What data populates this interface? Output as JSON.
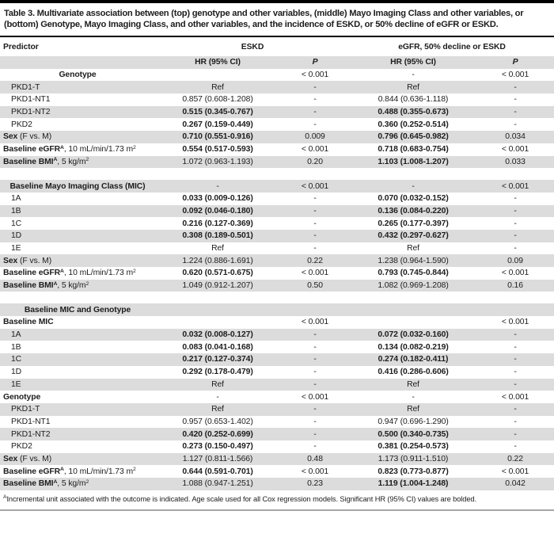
{
  "colors": {
    "stripe": "#dcdcdc",
    "rule_dark": "#000000",
    "rule_bottom": "#a6a6a6",
    "text": "#1d1d1d"
  },
  "table": {
    "title": "Table 3. Multivariate association between (top) genotype and other variables, (middle) Mayo Imaging Class and other variables, or (bottom) Genotype, Mayo Imaging Class, and other variables, and the incidence of ESKD, or 50% decline of eGFR or ESKD.",
    "headers": {
      "predictor": "Predictor",
      "group1": "ESKD",
      "group2": "eGFR, 50% decline or ESKD",
      "hr": "HR (95% CI)",
      "p": "P"
    },
    "footnote_sup": "A",
    "footnote": "Incremental unit associated with the outcome is indicated. Age scale used for all Cox regression models. Significant HR (95% CI) values are bolded.",
    "rows": [
      {
        "shade": false,
        "align": "center",
        "label": [
          {
            "t": "Genotype",
            "b": true
          }
        ],
        "cells": [
          "",
          "< 0.001",
          "-",
          "< 0.001"
        ]
      },
      {
        "shade": true,
        "indent": true,
        "label": [
          {
            "t": "PKD1-T"
          }
        ],
        "cells": [
          "Ref",
          "-",
          "Ref",
          "-"
        ]
      },
      {
        "shade": false,
        "indent": true,
        "label": [
          {
            "t": "PKD1-NT1"
          }
        ],
        "cells": [
          "0.857 (0.608-1.208)",
          "-",
          "0.844 (0.636-1.118)",
          "-"
        ]
      },
      {
        "shade": true,
        "indent": true,
        "label": [
          {
            "t": "PKD1-NT2"
          }
        ],
        "cells": [
          {
            "t": "0.515 (0.345-0.767)",
            "b": true
          },
          "-",
          {
            "t": "0.488 (0.355-0.673)",
            "b": true
          },
          "-"
        ]
      },
      {
        "shade": false,
        "indent": true,
        "label": [
          {
            "t": "PKD2"
          }
        ],
        "cells": [
          {
            "t": "0.267 (0.159-0.449)",
            "b": true
          },
          "-",
          {
            "t": "0.360 (0.252-0.514)",
            "b": true
          },
          "-"
        ]
      },
      {
        "shade": true,
        "label": [
          {
            "t": "Sex",
            "b": true
          },
          {
            "t": " (F vs. M)"
          }
        ],
        "cells": [
          {
            "t": "0.710 (0.551-0.916)",
            "b": true
          },
          "0.009",
          {
            "t": "0.796 (0.645-0.982)",
            "b": true
          },
          "0.034"
        ]
      },
      {
        "shade": false,
        "label": [
          {
            "t": "Baseline eGFR",
            "b": true
          },
          {
            "t": "A",
            "b": true,
            "s": true
          },
          {
            "t": ", 10 mL/min/1.73 m"
          },
          {
            "t": "2",
            "s": true
          }
        ],
        "cells": [
          {
            "t": "0.554 (0.517-0.593)",
            "b": true
          },
          "< 0.001",
          {
            "t": "0.718 (0.683-0.754)",
            "b": true
          },
          "< 0.001"
        ]
      },
      {
        "shade": true,
        "label": [
          {
            "t": "Baseline BMI",
            "b": true
          },
          {
            "t": "A",
            "b": true,
            "s": true
          },
          {
            "t": ", 5 kg/m"
          },
          {
            "t": "2",
            "s": true
          }
        ],
        "cells": [
          "1.072 (0.963-1.193)",
          "0.20",
          {
            "t": "1.103 (1.008-1.207)",
            "b": true
          },
          "0.033"
        ]
      },
      {
        "type": "gap"
      },
      {
        "shade": true,
        "align": "center",
        "label": [
          {
            "t": "Baseline Mayo Imaging Class (MIC)",
            "b": true
          }
        ],
        "cells": [
          "-",
          "< 0.001",
          "-",
          "< 0.001"
        ]
      },
      {
        "shade": false,
        "indent": true,
        "label": [
          {
            "t": "1A"
          }
        ],
        "cells": [
          {
            "t": "0.033 (0.009-0.126)",
            "b": true
          },
          "-",
          {
            "t": "0.070 (0.032-0.152)",
            "b": true
          },
          "-"
        ]
      },
      {
        "shade": true,
        "indent": true,
        "label": [
          {
            "t": "1B"
          }
        ],
        "cells": [
          {
            "t": "0.092 (0.046-0.180)",
            "b": true
          },
          "-",
          {
            "t": "0.136 (0.084-0.220)",
            "b": true
          },
          "-"
        ]
      },
      {
        "shade": false,
        "indent": true,
        "label": [
          {
            "t": "1C"
          }
        ],
        "cells": [
          {
            "t": "0.216 (0.127-0.369)",
            "b": true
          },
          "-",
          {
            "t": "0.265 (0.177-0.397)",
            "b": true
          },
          "-"
        ]
      },
      {
        "shade": true,
        "indent": true,
        "label": [
          {
            "t": "1D"
          }
        ],
        "cells": [
          {
            "t": "0.308 (0.189-0.501)",
            "b": true
          },
          "-",
          {
            "t": "0.432 (0.297-0.627)",
            "b": true
          },
          "-"
        ]
      },
      {
        "shade": false,
        "indent": true,
        "label": [
          {
            "t": "1E"
          }
        ],
        "cells": [
          "Ref",
          "-",
          "Ref",
          "-"
        ]
      },
      {
        "shade": true,
        "label": [
          {
            "t": "Sex",
            "b": true
          },
          {
            "t": " (F vs. M)"
          }
        ],
        "cells": [
          "1.224 (0.886-1.691)",
          "0.22",
          "1.238 (0.964-1.590)",
          "0.09"
        ]
      },
      {
        "shade": false,
        "label": [
          {
            "t": "Baseline eGFR",
            "b": true
          },
          {
            "t": "A",
            "b": true,
            "s": true
          },
          {
            "t": ", 10 mL/min/1.73 m"
          },
          {
            "t": "2",
            "s": true
          }
        ],
        "cells": [
          {
            "t": "0.620 (0.571-0.675)",
            "b": true
          },
          "< 0.001",
          {
            "t": "0.793 (0.745-0.844)",
            "b": true
          },
          "< 0.001"
        ]
      },
      {
        "shade": true,
        "label": [
          {
            "t": "Baseline BMI",
            "b": true
          },
          {
            "t": "A",
            "b": true,
            "s": true
          },
          {
            "t": ", 5 kg/m"
          },
          {
            "t": "2",
            "s": true
          }
        ],
        "cells": [
          "1.049 (0.912-1.207)",
          "0.50",
          "1.082 (0.969-1.208)",
          "0.16"
        ]
      },
      {
        "type": "gap"
      },
      {
        "shade": true,
        "align": "center",
        "label": [
          {
            "t": "Baseline MIC and Genotype",
            "b": true
          }
        ],
        "cells": [
          "",
          "",
          "",
          ""
        ]
      },
      {
        "shade": false,
        "label": [
          {
            "t": "Baseline MIC",
            "b": true
          }
        ],
        "cells": [
          "",
          "< 0.001",
          "",
          "< 0.001"
        ]
      },
      {
        "shade": true,
        "indent": true,
        "label": [
          {
            "t": "1A"
          }
        ],
        "cells": [
          {
            "t": "0.032 (0.008-0.127)",
            "b": true
          },
          "-",
          {
            "t": "0.072 (0.032-0.160)",
            "b": true
          },
          "-"
        ]
      },
      {
        "shade": false,
        "indent": true,
        "label": [
          {
            "t": "1B"
          }
        ],
        "cells": [
          {
            "t": "0.083 (0.041-0.168)",
            "b": true
          },
          "-",
          {
            "t": "0.134 (0.082-0.219)",
            "b": true
          },
          "-"
        ]
      },
      {
        "shade": true,
        "indent": true,
        "label": [
          {
            "t": "1C"
          }
        ],
        "cells": [
          {
            "t": "0.217 (0.127-0.374)",
            "b": true
          },
          "-",
          {
            "t": "0.274 (0.182-0.411)",
            "b": true
          },
          "-"
        ]
      },
      {
        "shade": false,
        "indent": true,
        "label": [
          {
            "t": "1D"
          }
        ],
        "cells": [
          {
            "t": "0.292 (0.178-0.479)",
            "b": true
          },
          "-",
          {
            "t": "0.416 (0.286-0.606)",
            "b": true
          },
          "-"
        ]
      },
      {
        "shade": true,
        "indent": true,
        "label": [
          {
            "t": "1E"
          }
        ],
        "cells": [
          "Ref",
          "-",
          "Ref",
          "-"
        ]
      },
      {
        "shade": false,
        "label": [
          {
            "t": "Genotype",
            "b": true
          }
        ],
        "cells": [
          "-",
          "< 0.001",
          "-",
          "< 0.001"
        ]
      },
      {
        "shade": true,
        "indent": true,
        "label": [
          {
            "t": "PKD1-T"
          }
        ],
        "cells": [
          "Ref",
          "-",
          "Ref",
          "-"
        ]
      },
      {
        "shade": false,
        "indent": true,
        "label": [
          {
            "t": "PKD1-NT1"
          }
        ],
        "cells": [
          "0.957 (0.653-1.402)",
          "-",
          "0.947 (0.696-1.290)",
          "-"
        ]
      },
      {
        "shade": true,
        "indent": true,
        "label": [
          {
            "t": "PKD1-NT2"
          }
        ],
        "cells": [
          {
            "t": "0.420 (0.252-0.699)",
            "b": true
          },
          "-",
          {
            "t": "0.500 (0.340-0.735)",
            "b": true
          },
          "-"
        ]
      },
      {
        "shade": false,
        "indent": true,
        "label": [
          {
            "t": "PKD2"
          }
        ],
        "cells": [
          {
            "t": "0.273 (0.150-0.497)",
            "b": true
          },
          "-",
          {
            "t": "0.381 (0.254-0.573)",
            "b": true
          },
          "-"
        ]
      },
      {
        "shade": true,
        "label": [
          {
            "t": "Sex",
            "b": true
          },
          {
            "t": " (F vs. M)"
          }
        ],
        "cells": [
          "1.127 (0.811-1.566)",
          "0.48",
          "1.173 (0.911-1.510)",
          "0.22"
        ]
      },
      {
        "shade": false,
        "label": [
          {
            "t": "Baseline eGFR",
            "b": true
          },
          {
            "t": "A",
            "b": true,
            "s": true
          },
          {
            "t": ", 10 mL/min/1.73 m"
          },
          {
            "t": "2",
            "s": true
          }
        ],
        "cells": [
          {
            "t": "0.644 (0.591-0.701)",
            "b": true
          },
          "< 0.001",
          {
            "t": "0.823 (0.773-0.877)",
            "b": true
          },
          "< 0.001"
        ]
      },
      {
        "shade": true,
        "label": [
          {
            "t": "Baseline BMI",
            "b": true
          },
          {
            "t": "A",
            "b": true,
            "s": true
          },
          {
            "t": ", 5 kg/m"
          },
          {
            "t": "2",
            "s": true
          }
        ],
        "cells": [
          "1.088 (0.947-1.251)",
          "0.23",
          {
            "t": "1.119 (1.004-1.248)",
            "b": true
          },
          "0.042"
        ]
      }
    ]
  }
}
